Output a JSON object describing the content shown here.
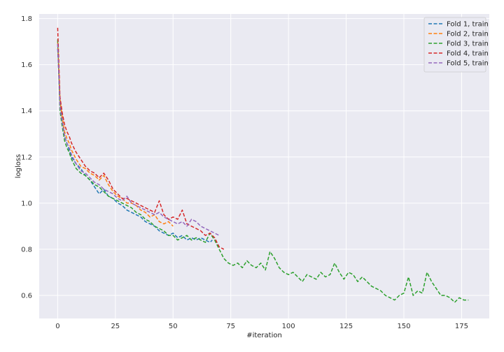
{
  "chart_data": {
    "type": "line",
    "title": "",
    "xlabel": "#iteration",
    "ylabel": "logloss",
    "xlim": [
      -8,
      187
    ],
    "ylim": [
      0.5,
      1.82
    ],
    "xticks": [
      "0",
      "25",
      "50",
      "75",
      "100",
      "125",
      "150",
      "175"
    ],
    "yticks": [
      "0.6",
      "0.8",
      "1.0",
      "1.2",
      "1.4",
      "1.6",
      "1.8"
    ],
    "grid": true,
    "legend_position": "top-right",
    "series": [
      {
        "name": "Fold 1, train",
        "color": "#1f77b4",
        "x": [
          0,
          1,
          2,
          3,
          4,
          5,
          6,
          8,
          10,
          12,
          14,
          16,
          18,
          20,
          22,
          24,
          26,
          28,
          30,
          32,
          34,
          36,
          38,
          40,
          42,
          44,
          46,
          48,
          50,
          52,
          54,
          56,
          58,
          60,
          62,
          64,
          66,
          67
        ],
        "y": [
          1.67,
          1.44,
          1.36,
          1.29,
          1.26,
          1.23,
          1.2,
          1.17,
          1.15,
          1.12,
          1.1,
          1.07,
          1.04,
          1.06,
          1.03,
          1.02,
          1.0,
          0.99,
          0.97,
          0.96,
          0.95,
          0.94,
          0.92,
          0.91,
          0.9,
          0.88,
          0.87,
          0.86,
          0.87,
          0.85,
          0.86,
          0.84,
          0.85,
          0.84,
          0.85,
          0.84,
          0.83,
          0.84
        ]
      },
      {
        "name": "Fold 2, train",
        "color": "#ff7f0e",
        "x": [
          0,
          1,
          2,
          3,
          4,
          5,
          6,
          8,
          10,
          12,
          14,
          16,
          18,
          20,
          22,
          24,
          26,
          28,
          30,
          32,
          34,
          36,
          38,
          40,
          42,
          44,
          46,
          48,
          50
        ],
        "y": [
          1.7,
          1.45,
          1.37,
          1.31,
          1.28,
          1.26,
          1.23,
          1.19,
          1.16,
          1.15,
          1.13,
          1.12,
          1.1,
          1.12,
          1.08,
          1.05,
          1.03,
          1.02,
          1.0,
          1.0,
          0.99,
          0.97,
          0.96,
          0.94,
          0.95,
          0.92,
          0.91,
          0.92,
          0.9
        ]
      },
      {
        "name": "Fold 3, train",
        "color": "#2ca02c",
        "x": [
          0,
          1,
          2,
          3,
          4,
          5,
          6,
          8,
          10,
          12,
          14,
          16,
          18,
          20,
          22,
          24,
          26,
          28,
          30,
          32,
          34,
          36,
          38,
          40,
          42,
          44,
          46,
          48,
          50,
          52,
          54,
          56,
          58,
          60,
          62,
          64,
          66,
          68,
          70,
          72,
          74,
          76,
          78,
          80,
          82,
          84,
          86,
          88,
          90,
          92,
          94,
          96,
          98,
          100,
          102,
          104,
          106,
          108,
          110,
          112,
          114,
          116,
          118,
          120,
          122,
          124,
          126,
          128,
          130,
          132,
          134,
          136,
          138,
          140,
          142,
          144,
          146,
          148,
          150,
          152,
          154,
          156,
          158,
          160,
          162,
          164,
          166,
          168,
          170,
          172,
          174,
          176,
          178
        ],
        "y": [
          1.71,
          1.4,
          1.33,
          1.27,
          1.24,
          1.22,
          1.19,
          1.15,
          1.13,
          1.12,
          1.1,
          1.08,
          1.07,
          1.05,
          1.03,
          1.02,
          1.01,
          1.0,
          0.99,
          0.98,
          0.96,
          0.95,
          0.93,
          0.92,
          0.9,
          0.89,
          0.88,
          0.86,
          0.86,
          0.84,
          0.85,
          0.86,
          0.84,
          0.85,
          0.84,
          0.83,
          0.87,
          0.84,
          0.8,
          0.76,
          0.74,
          0.73,
          0.74,
          0.72,
          0.75,
          0.73,
          0.72,
          0.74,
          0.71,
          0.79,
          0.76,
          0.72,
          0.7,
          0.69,
          0.7,
          0.68,
          0.66,
          0.69,
          0.68,
          0.67,
          0.7,
          0.68,
          0.69,
          0.74,
          0.7,
          0.67,
          0.7,
          0.69,
          0.66,
          0.68,
          0.66,
          0.64,
          0.63,
          0.62,
          0.6,
          0.59,
          0.58,
          0.6,
          0.61,
          0.68,
          0.6,
          0.62,
          0.61,
          0.7,
          0.66,
          0.63,
          0.6,
          0.6,
          0.59,
          0.57,
          0.59,
          0.58,
          0.58
        ]
      },
      {
        "name": "Fold 4, train",
        "color": "#d62728",
        "x": [
          0,
          1,
          2,
          3,
          4,
          5,
          6,
          8,
          10,
          12,
          14,
          16,
          18,
          20,
          22,
          24,
          26,
          28,
          30,
          32,
          34,
          36,
          38,
          40,
          42,
          44,
          46,
          48,
          50,
          52,
          54,
          56,
          58,
          60,
          62,
          64,
          66,
          68,
          70,
          72
        ],
        "y": [
          1.76,
          1.46,
          1.39,
          1.34,
          1.31,
          1.29,
          1.26,
          1.22,
          1.19,
          1.16,
          1.14,
          1.13,
          1.11,
          1.13,
          1.1,
          1.06,
          1.04,
          1.02,
          1.02,
          1.01,
          1.0,
          0.99,
          0.98,
          0.97,
          0.96,
          1.01,
          0.95,
          0.93,
          0.94,
          0.93,
          0.97,
          0.91,
          0.9,
          0.89,
          0.88,
          0.86,
          0.87,
          0.85,
          0.81,
          0.8
        ]
      },
      {
        "name": "Fold 5, train",
        "color": "#9467bd",
        "x": [
          0,
          1,
          2,
          3,
          4,
          5,
          6,
          8,
          10,
          12,
          14,
          16,
          18,
          20,
          22,
          24,
          26,
          28,
          30,
          32,
          34,
          36,
          38,
          40,
          42,
          44,
          46,
          48,
          50,
          52,
          54,
          56,
          58,
          60,
          62,
          64,
          66,
          68,
          70
        ],
        "y": [
          1.69,
          1.42,
          1.35,
          1.29,
          1.26,
          1.24,
          1.21,
          1.17,
          1.14,
          1.13,
          1.11,
          1.09,
          1.08,
          1.06,
          1.05,
          1.04,
          1.02,
          1.01,
          1.03,
          1.0,
          0.99,
          0.98,
          0.97,
          0.96,
          0.95,
          0.96,
          0.94,
          0.93,
          0.92,
          0.91,
          0.92,
          0.9,
          0.93,
          0.92,
          0.9,
          0.89,
          0.88,
          0.87,
          0.86
        ]
      }
    ]
  }
}
